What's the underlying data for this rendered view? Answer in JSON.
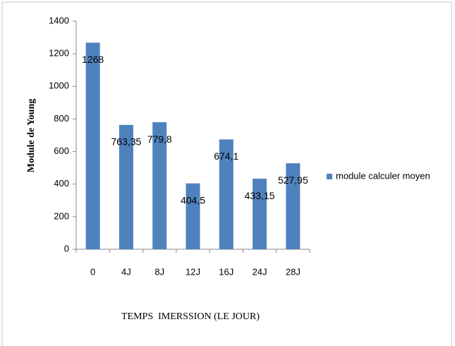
{
  "chart_data": {
    "type": "bar",
    "categories": [
      "0",
      "4J",
      "8J",
      "12J",
      "16J",
      "24J",
      "28J"
    ],
    "series": [
      {
        "name": "module calculer moyen",
        "color": "#4f81bd",
        "values": [
          1268,
          763.35,
          779.8,
          404.5,
          674.1,
          433.15,
          527.95
        ],
        "value_labels": [
          "1268",
          "763,35",
          "779,8",
          "404,5",
          "674,1",
          "433,15",
          "527,95"
        ]
      }
    ],
    "x_label": "TEMPS  IMERSSION (LE JOUR)",
    "y_label": "Module de Young",
    "ylim": [
      0,
      1400
    ],
    "yticks": [
      0,
      200,
      400,
      600,
      800,
      1000,
      1200,
      1400
    ],
    "grid": false,
    "legend": "right"
  }
}
